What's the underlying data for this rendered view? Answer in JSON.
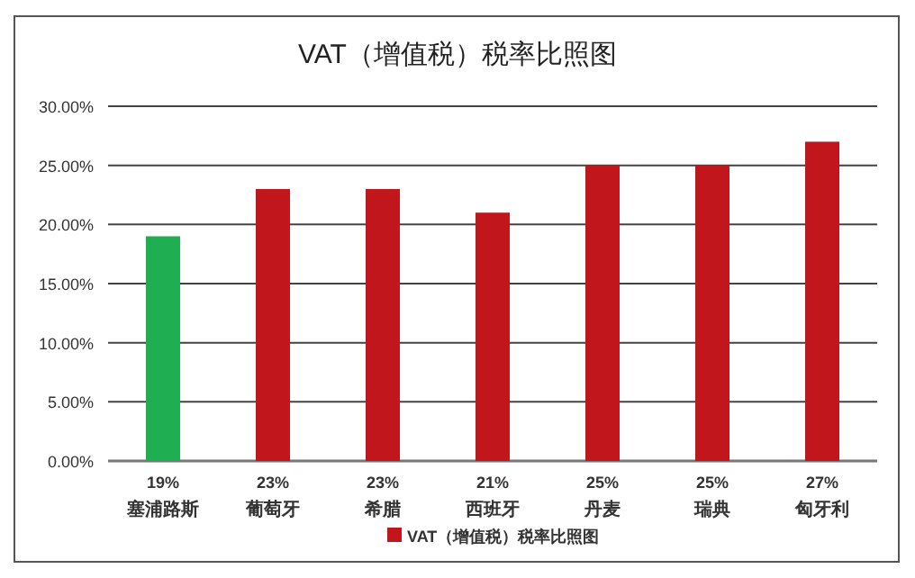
{
  "chart_data": {
    "type": "bar",
    "title": "VAT（增值税）税率比照图",
    "categories": [
      "塞浦路斯",
      "葡萄牙",
      "希腊",
      "西班牙",
      "丹麦",
      "瑞典",
      "匈牙利"
    ],
    "series": [
      {
        "name": "VAT（增值税）税率比照图",
        "color": "#c0161c",
        "values": [
          19,
          23,
          23,
          21,
          25,
          25,
          27
        ],
        "colors": [
          "#1fae52",
          "#c0161c",
          "#c0161c",
          "#c0161c",
          "#c0161c",
          "#c0161c",
          "#c0161c"
        ],
        "value_labels": [
          "19%",
          "23%",
          "23%",
          "21%",
          "25%",
          "25%",
          "27%"
        ]
      }
    ],
    "ylim": [
      0,
      30
    ],
    "yticks": [
      {
        "value": 0,
        "label": "0.00%"
      },
      {
        "value": 5,
        "label": "5.00%"
      },
      {
        "value": 10,
        "label": "10.00%"
      },
      {
        "value": 15,
        "label": "15.00%"
      },
      {
        "value": 20,
        "label": "20.00%"
      },
      {
        "value": 25,
        "label": "25.00%"
      },
      {
        "value": 30,
        "label": "30.00%"
      }
    ],
    "grid": "y",
    "legend": "bottom"
  }
}
